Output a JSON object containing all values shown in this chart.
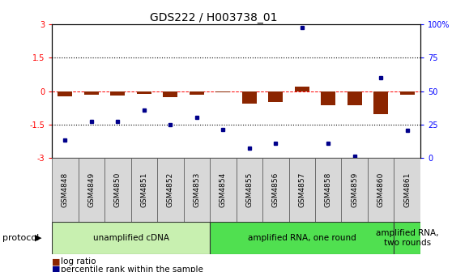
{
  "title": "GDS222 / H003738_01",
  "samples": [
    "GSM4848",
    "GSM4849",
    "GSM4850",
    "GSM4851",
    "GSM4852",
    "GSM4853",
    "GSM4854",
    "GSM4855",
    "GSM4856",
    "GSM4857",
    "GSM4858",
    "GSM4859",
    "GSM4860",
    "GSM4861"
  ],
  "log_ratio": [
    -0.22,
    -0.18,
    -0.2,
    -0.12,
    -0.28,
    -0.18,
    -0.04,
    -0.55,
    -0.5,
    0.2,
    -0.62,
    -0.65,
    -1.05,
    -0.16
  ],
  "percentile_left": [
    -2.2,
    -1.35,
    -1.35,
    -0.85,
    -1.52,
    -1.18,
    -1.72,
    -2.55,
    -2.35,
    2.87,
    -2.35,
    -2.93,
    0.6,
    -1.75
  ],
  "bar_color": "#8B2500",
  "dot_color": "#00008B",
  "bg_color": "#ffffff",
  "ylim": [
    -3,
    3
  ],
  "y2lim": [
    0,
    100
  ],
  "yticks_left": [
    -3,
    -1.5,
    0,
    1.5,
    3
  ],
  "yticks_right": [
    0,
    25,
    50,
    75,
    100
  ],
  "dotted_lines": [
    -1.5,
    1.5
  ],
  "protocol_groups": [
    {
      "label": "unamplified cDNA",
      "start": 0,
      "end": 5,
      "color": "#c8f0b0"
    },
    {
      "label": "amplified RNA, one round",
      "start": 6,
      "end": 12,
      "color": "#50e050"
    },
    {
      "label": "amplified RNA,\ntwo rounds",
      "start": 13,
      "end": 13,
      "color": "#50e050"
    }
  ],
  "protocol_label": "protocol",
  "legend_log_label": "log ratio",
  "legend_pct_label": "percentile rank within the sample",
  "title_fontsize": 10,
  "tick_fontsize": 7,
  "sample_fontsize": 6.5,
  "proto_fontsize": 7.5
}
